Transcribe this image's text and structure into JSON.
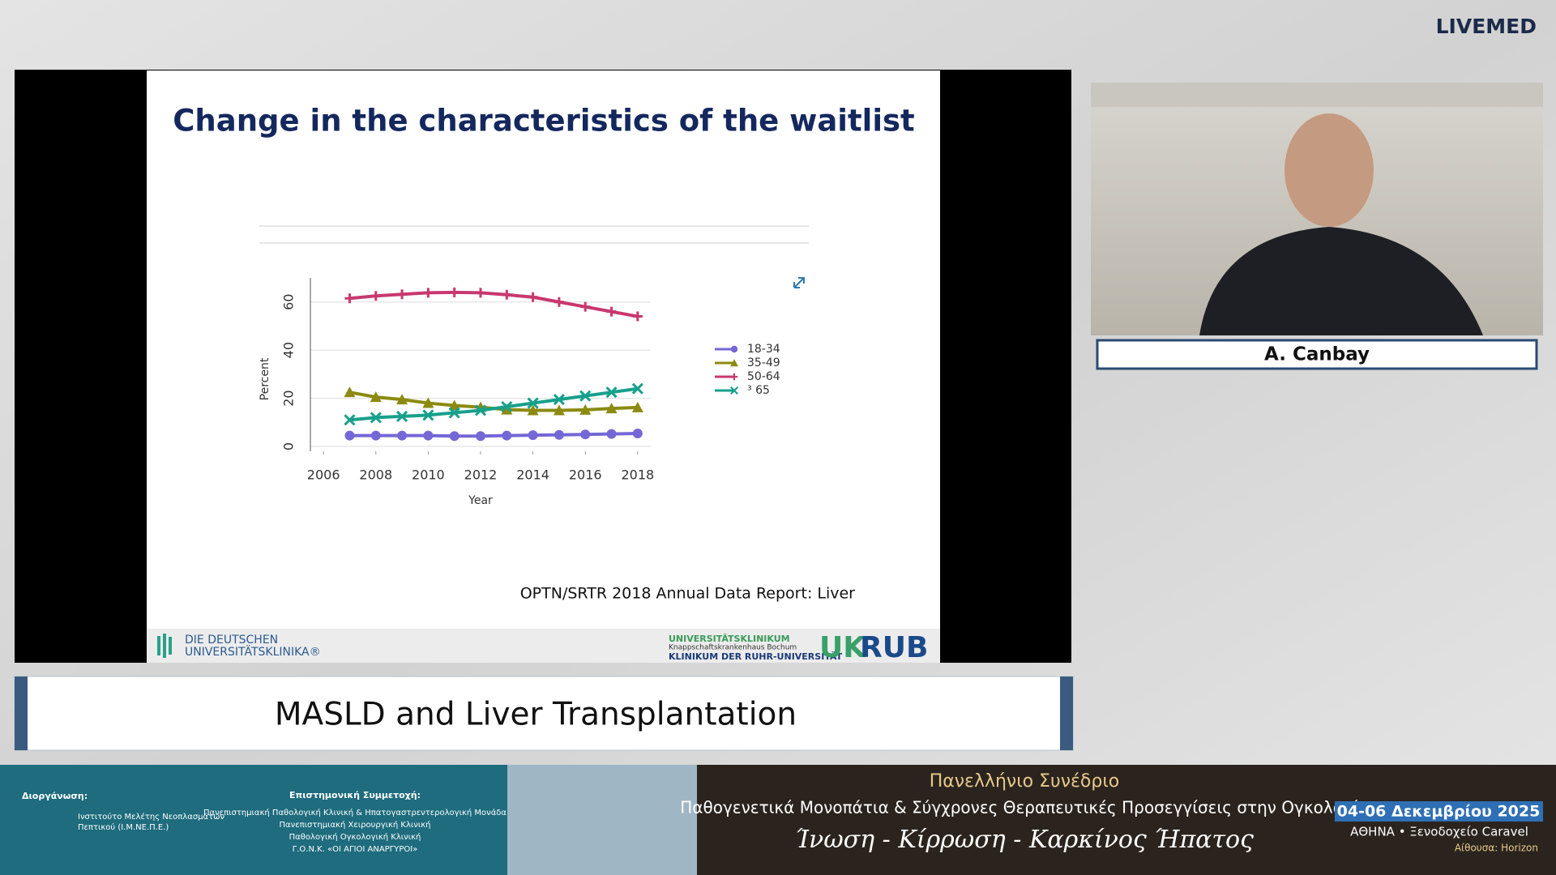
{
  "header": {
    "brand": "LIVEMED"
  },
  "slide": {
    "title": "Change in the characteristics of the waitlist",
    "chart": {
      "type": "line",
      "xlabel": "Year",
      "ylabel": "Percent",
      "x": [
        2007,
        2008,
        2009,
        2010,
        2011,
        2012,
        2013,
        2014,
        2015,
        2016,
        2017,
        2018
      ],
      "series": [
        {
          "name": "18-34",
          "color": "#7467d6",
          "marker": "circle",
          "values": [
            4.5,
            4.5,
            4.5,
            4.5,
            4.3,
            4.3,
            4.5,
            4.7,
            4.8,
            5,
            5.2,
            5.4
          ]
        },
        {
          "name": "35-49",
          "color": "#8c8a10",
          "marker": "triangle",
          "values": [
            22.5,
            20.5,
            19.5,
            18,
            17,
            16.3,
            15.3,
            15,
            15,
            15.2,
            15.8,
            16.2
          ]
        },
        {
          "name": "50-64",
          "color": "#c8386e",
          "marker": "plus",
          "values": [
            61.5,
            62.5,
            63.2,
            63.8,
            64,
            63.8,
            63,
            62,
            60,
            58,
            56,
            54
          ]
        },
        {
          "name": "³ 65",
          "color": "#17a08c",
          "marker": "cross",
          "values": [
            11,
            12,
            12.5,
            13,
            14,
            15,
            16.5,
            18,
            19.5,
            21,
            22.5,
            24
          ]
        }
      ],
      "xlim": [
        2005.5,
        2018.5
      ],
      "ylim": [
        -2,
        70
      ],
      "xticks": [
        2006,
        2008,
        2010,
        2012,
        2014,
        2016,
        2018
      ],
      "yticks": [
        0,
        20,
        40,
        60
      ],
      "grid": true
    },
    "source": "OPTN/SRTR 2018 Annual Data Report: Liver",
    "footer": {
      "left_logo": [
        "DIE DEUTSCHEN",
        "UNIVERSITÄTSKLINIKA®"
      ],
      "right_logo": [
        "UNIVERSITÄTSKLINIKUM",
        "Knappschaftskrankenhaus Bochum",
        "KLINIKUM DER RUHR-UNIVERSITÄT"
      ],
      "uk": "UK",
      "rub": "RUB"
    }
  },
  "speaker": {
    "name": "A. Canbay"
  },
  "session": {
    "title": "MASLD and Liver Transplantation"
  },
  "banner": {
    "organizer_label": "Διοργάνωση:",
    "organizer": [
      "Ινστιτούτο Μελέτης Νεοπλασμάτων",
      "Πεπτικού (Ι.Μ.ΝΕ.Π.Ε.)"
    ],
    "participation_label": "Επιστημονική Συμμετοχή:",
    "participation": [
      "Πανεπιστημιακή Παθολογική Κλινική & Ηπατογαστρεντερολογική Μονάδα",
      "Πανεπιστημιακή Χειρουργική Κλινική",
      "Παθολογική Ογκολογική Κλινική",
      "Γ.Ο.Ν.Κ. «ΟΙ ΑΓΙΟΙ ΑΝΑΡΓΥΡΟΙ»"
    ],
    "congress": "Πανελλήνιο Συνέδριο",
    "subtitle": "Παθογενετικά Μονοπάτια & Σύγχρονες Θεραπευτικές Προσεγγίσεις στην Ογκολογία",
    "tagline": "Ίνωση - Κίρρωση - Καρκίνος Ήπατος",
    "dates": "04-06 Δεκεμβρίου 2025",
    "venue": "ΑΘΗΝΑ • Ξενοδοχείο Caravel",
    "room": "Αίθουσα: Horizon"
  }
}
